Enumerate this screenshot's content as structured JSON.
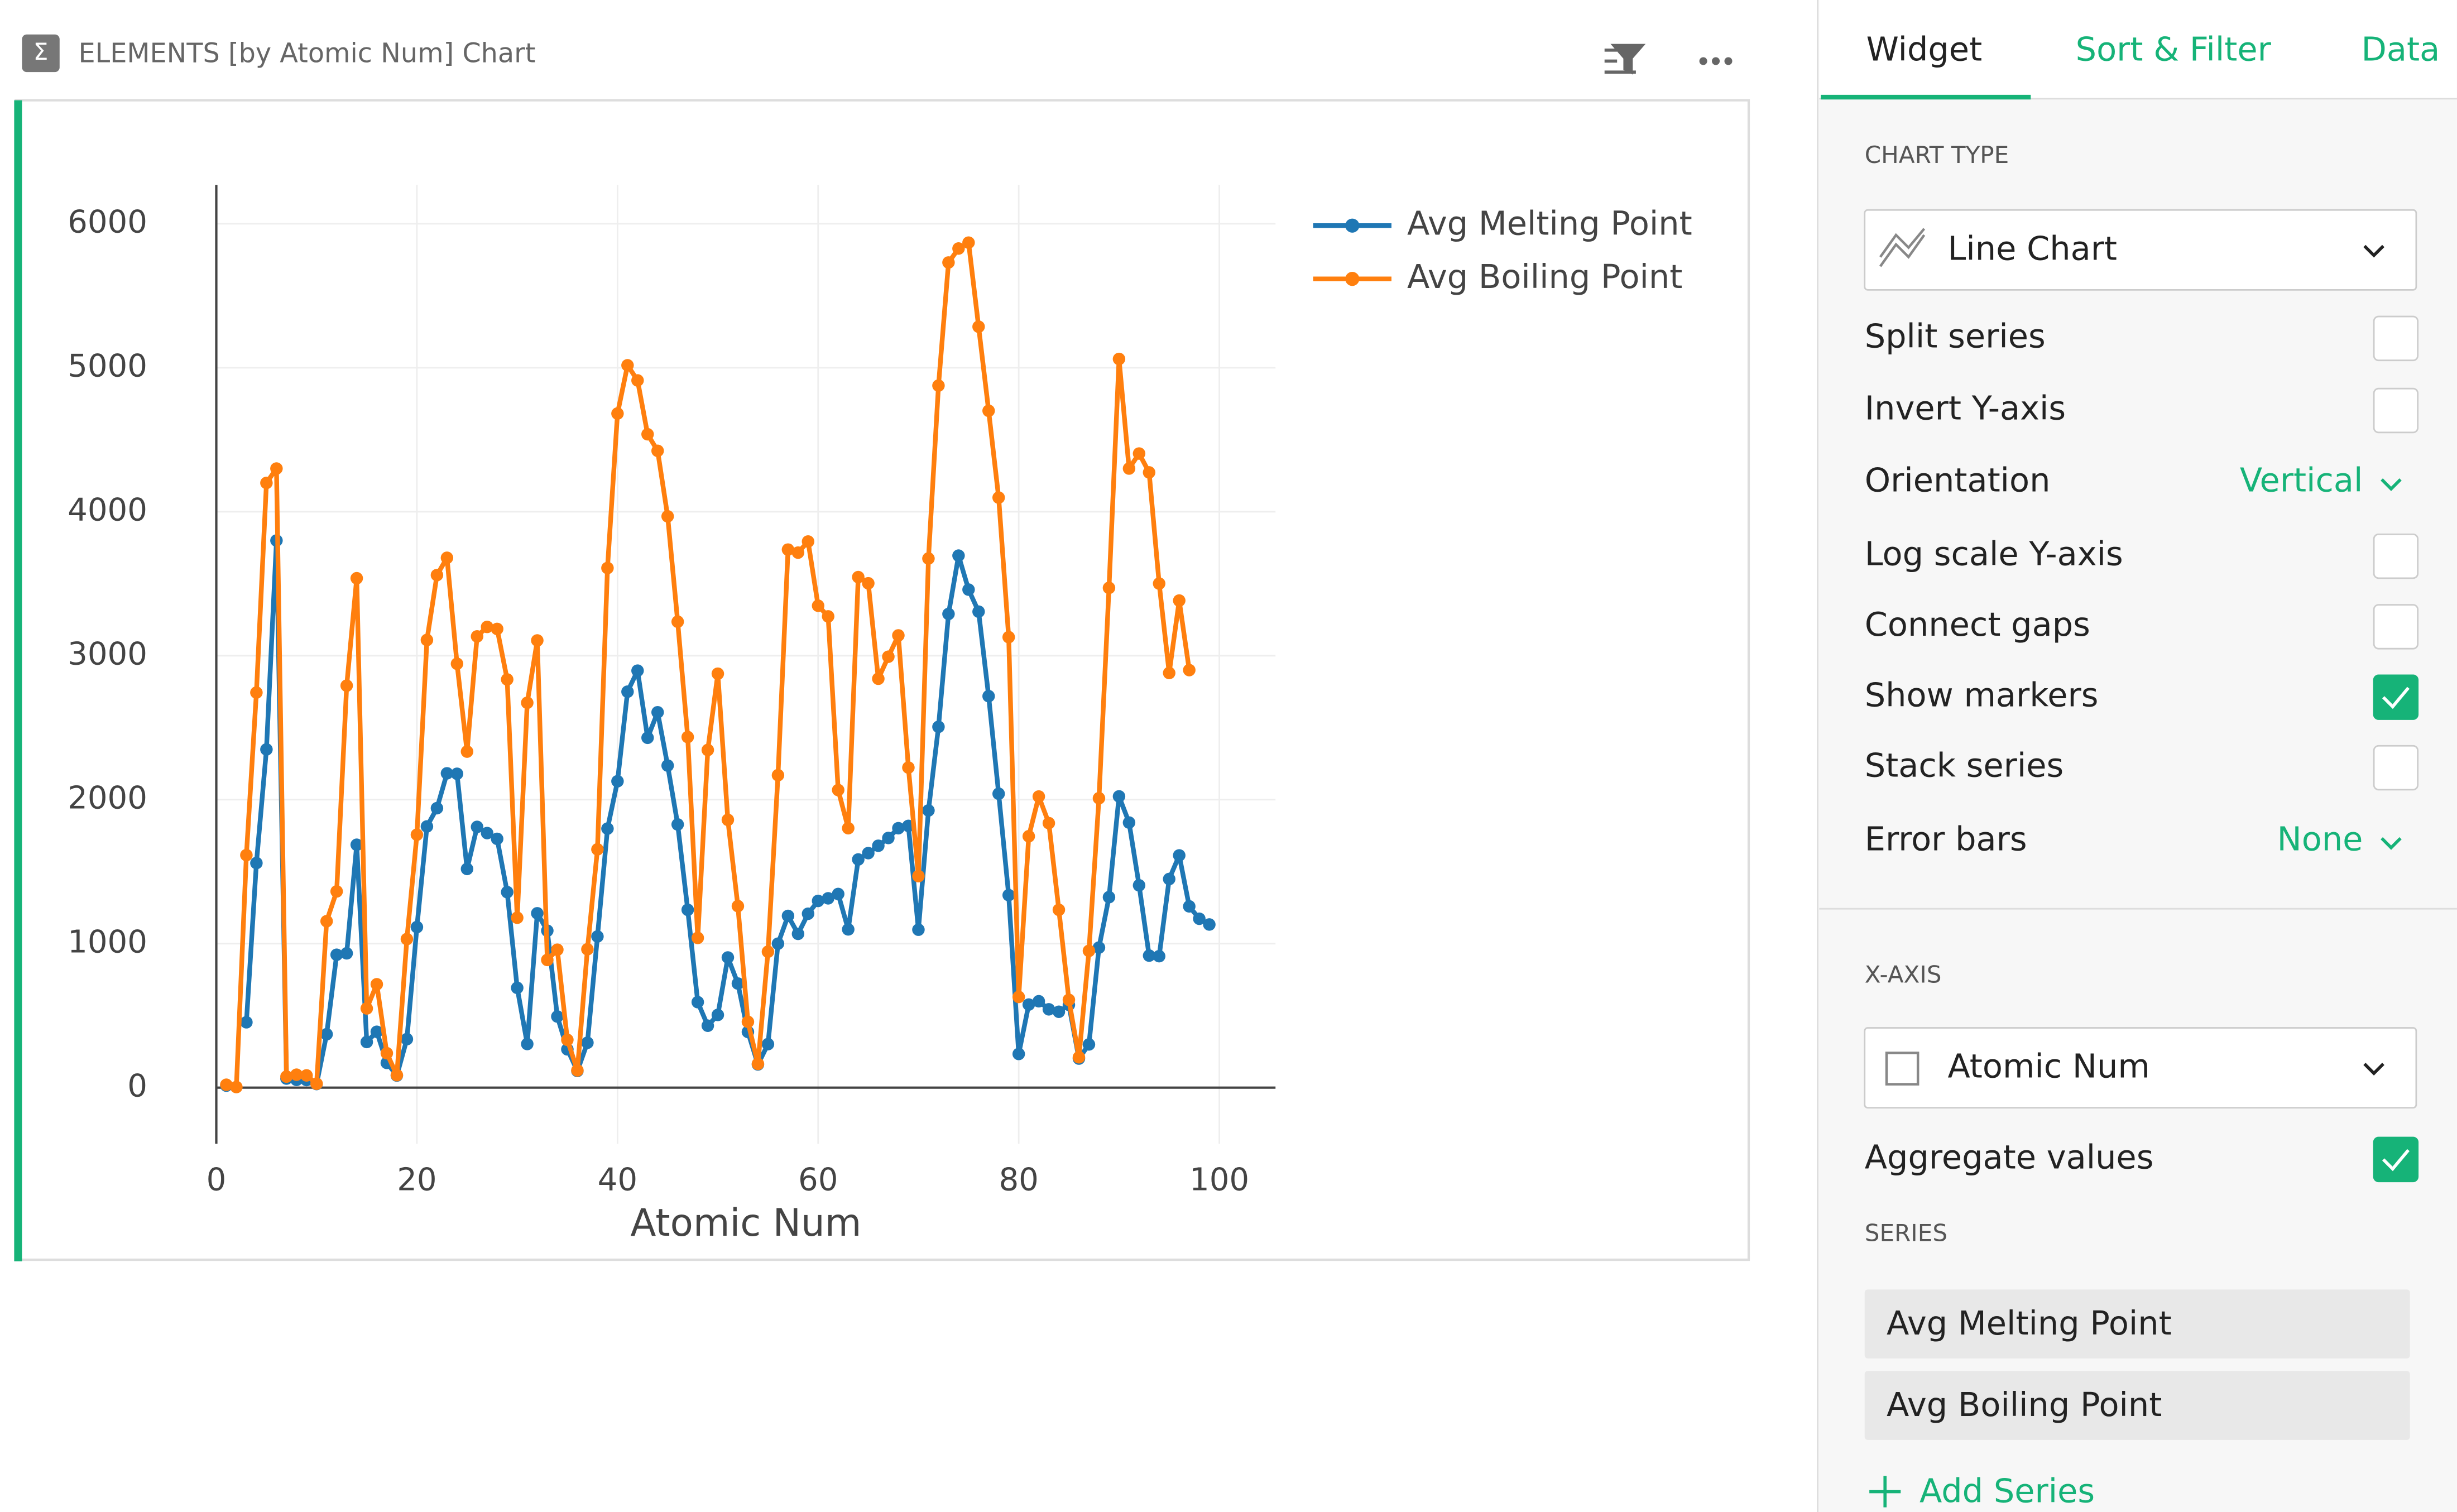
{
  "header": {
    "title": "ELEMENTS [by Atomic Num] Chart"
  },
  "chart_data": {
    "type": "line",
    "x_label": "Atomic Num",
    "x": [
      1,
      2,
      3,
      4,
      5,
      6,
      7,
      8,
      9,
      10,
      11,
      12,
      13,
      14,
      15,
      16,
      17,
      18,
      19,
      20,
      21,
      22,
      23,
      24,
      25,
      26,
      27,
      28,
      29,
      30,
      31,
      32,
      33,
      34,
      35,
      36,
      37,
      38,
      39,
      40,
      41,
      42,
      43,
      44,
      45,
      46,
      47,
      48,
      49,
      50,
      51,
      52,
      53,
      54,
      55,
      56,
      57,
      58,
      59,
      60,
      61,
      62,
      63,
      64,
      65,
      66,
      67,
      68,
      69,
      70,
      71,
      72,
      73,
      74,
      75,
      76,
      77,
      78,
      79,
      80,
      81,
      82,
      83,
      84,
      85,
      86,
      87,
      88,
      89,
      90,
      91,
      92,
      93,
      94,
      95,
      96,
      97,
      98,
      99
    ],
    "series": [
      {
        "name": "Avg Melting Point",
        "color": "#1f77b4",
        "values": [
          14,
          null,
          454,
          1560,
          2349,
          3800,
          63,
          54,
          53,
          25,
          371,
          923,
          933,
          1687,
          317,
          388,
          172,
          84,
          337,
          1115,
          1814,
          1941,
          2183,
          2180,
          1519,
          1811,
          1768,
          1728,
          1358,
          693,
          303,
          1211,
          1090,
          494,
          266,
          116,
          312,
          1050,
          1799,
          2128,
          2750,
          2896,
          2430,
          2607,
          2237,
          1828,
          1235,
          594,
          430,
          505,
          904,
          723,
          387,
          161,
          302,
          1000,
          1193,
          1068,
          1208,
          1297,
          1315,
          1345,
          1099,
          1585,
          1629,
          1680,
          1734,
          1802,
          1818,
          1097,
          1925,
          2506,
          3290,
          3695,
          3459,
          3306,
          2719,
          2041,
          1337,
          234,
          577,
          600,
          544,
          527,
          575,
          202,
          300,
          973,
          1323,
          2023,
          1841,
          1405,
          917,
          913,
          1449,
          1613,
          1259,
          1173,
          1133
        ]
      },
      {
        "name": "Avg Boiling Point",
        "color": "#ff7f0e",
        "values": [
          20,
          4,
          1615,
          2744,
          4200,
          4300,
          77,
          90,
          85,
          27,
          1156,
          1363,
          2792,
          3538,
          550,
          718,
          239,
          87,
          1032,
          1757,
          3109,
          3560,
          3680,
          2944,
          2334,
          3134,
          3200,
          3186,
          2835,
          1180,
          2673,
          3106,
          887,
          958,
          332,
          120,
          961,
          1655,
          3609,
          4682,
          5017,
          4912,
          4538,
          4423,
          3968,
          3236,
          2435,
          1040,
          2345,
          2875,
          1860,
          1261,
          457,
          165,
          944,
          2170,
          3737,
          3716,
          3793,
          3347,
          3273,
          2067,
          1802,
          3546,
          3503,
          2840,
          2993,
          3141,
          2223,
          1469,
          3675,
          4876,
          5731,
          5828,
          5869,
          5285,
          4701,
          4098,
          3129,
          630,
          1746,
          2022,
          1837,
          1235,
          610,
          211,
          950,
          2010,
          3471,
          5061,
          4300,
          4404,
          4273,
          3501,
          2880,
          3383,
          2900,
          null,
          null
        ]
      }
    ],
    "xlim": [
      0,
      105.6
    ],
    "xticks": [
      0,
      20,
      40,
      60,
      80,
      100
    ],
    "ylim": [
      -390,
      6270
    ],
    "yticks": [
      0,
      1000,
      2000,
      3000,
      4000,
      5000,
      6000
    ],
    "grid": true,
    "markers": true,
    "legend": "top-right"
  },
  "panel": {
    "tabs": [
      "Widget",
      "Sort & Filter",
      "Data"
    ],
    "chart_type_heading": "CHART TYPE",
    "chart_type": "Line Chart",
    "options": [
      {
        "label": "Split series",
        "checked": false
      },
      {
        "label": "Invert Y-axis",
        "checked": false
      },
      {
        "label": "Orientation",
        "value": "Vertical"
      },
      {
        "label": "Log scale Y-axis",
        "checked": false
      },
      {
        "label": "Connect gaps",
        "checked": false
      },
      {
        "label": "Show markers",
        "checked": true
      },
      {
        "label": "Stack series",
        "checked": false
      },
      {
        "label": "Error bars",
        "value": "None"
      }
    ],
    "x_axis_heading": "X-AXIS",
    "x_axis": "Atomic Num",
    "aggregate": {
      "label": "Aggregate values",
      "checked": true
    },
    "series_heading": "SERIES",
    "series": [
      "Avg Melting Point",
      "Avg Boiling Point"
    ],
    "add_series": "Add Series"
  }
}
